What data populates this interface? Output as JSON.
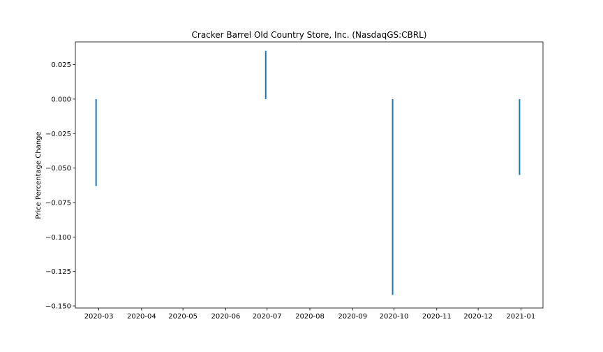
{
  "chart_data": {
    "type": "bar",
    "title": "Cracker Barrel Old Country Store, Inc. (NasdaqGS:CBRL)",
    "xlabel": "",
    "ylabel": "Price Percentage Change",
    "x_axis": {
      "type": "date",
      "range": [
        "2020-02-13",
        "2021-01-17"
      ],
      "ticks": [
        {
          "date": "2020-03-01",
          "label": "2020-03"
        },
        {
          "date": "2020-04-01",
          "label": "2020-04"
        },
        {
          "date": "2020-05-01",
          "label": "2020-05"
        },
        {
          "date": "2020-06-01",
          "label": "2020-06"
        },
        {
          "date": "2020-07-01",
          "label": "2020-07"
        },
        {
          "date": "2020-08-01",
          "label": "2020-08"
        },
        {
          "date": "2020-09-01",
          "label": "2020-09"
        },
        {
          "date": "2020-10-01",
          "label": "2020-10"
        },
        {
          "date": "2020-11-01",
          "label": "2020-11"
        },
        {
          "date": "2020-12-01",
          "label": "2020-12"
        },
        {
          "date": "2021-01-01",
          "label": "2021-01"
        }
      ]
    },
    "y_axis": {
      "range": [
        -0.1515,
        0.0415
      ],
      "ticks": [
        {
          "value": 0.025,
          "label": "0.025"
        },
        {
          "value": 0.0,
          "label": "0.000"
        },
        {
          "value": -0.025,
          "label": "−0.025"
        },
        {
          "value": -0.05,
          "label": "−0.050"
        },
        {
          "value": -0.075,
          "label": "−0.075"
        },
        {
          "value": -0.1,
          "label": "−0.100"
        },
        {
          "value": -0.125,
          "label": "−0.125"
        },
        {
          "value": -0.15,
          "label": "−0.150"
        }
      ]
    },
    "points": [
      {
        "date": "2020-02-28",
        "value": -0.063
      },
      {
        "date": "2020-06-30",
        "value": 0.035
      },
      {
        "date": "2020-09-30",
        "value": -0.142
      },
      {
        "date": "2020-12-31",
        "value": -0.055
      }
    ],
    "bar_color": "#1f77b4",
    "grid": false,
    "legend": "none"
  }
}
